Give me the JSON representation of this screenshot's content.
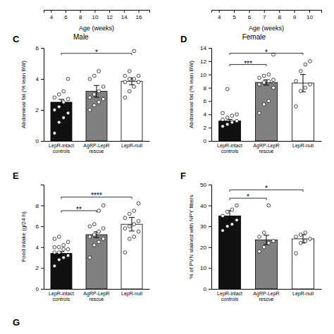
{
  "chart_data": [
    {
      "type": "axis",
      "x_label": "Age (weeks)",
      "xlim": [
        3.0,
        17.5
      ],
      "xticks": [
        4,
        6,
        8,
        10,
        12,
        14,
        16
      ]
    },
    {
      "type": "axis",
      "x_label": "Age (weeks)",
      "xlim": [
        3.5,
        10.8
      ],
      "xticks": [
        4,
        5,
        6,
        7,
        8,
        9,
        10
      ]
    },
    {
      "type": "bar",
      "panel": "C",
      "title": "Male",
      "y_label": "Abdominal fat (% lean BW)",
      "categories": [
        "LepR-intact\ncontrols",
        "AgRP-LepR\nrescue",
        "LepR-null"
      ],
      "values": [
        2.5,
        3.2,
        3.85
      ],
      "errors": [
        0.18,
        0.38,
        0.22
      ],
      "colors": [
        "#111111",
        "#808080",
        "#ffffff"
      ],
      "points": [
        [
          0.5,
          1.2,
          1.5,
          1.8,
          2.0,
          2.2,
          2.5,
          2.7,
          2.8,
          3.0,
          3.2,
          4.0
        ],
        [
          2.0,
          2.3,
          2.5,
          2.7,
          2.8,
          3.0,
          3.2,
          3.5,
          4.0,
          4.2,
          4.5
        ],
        [
          2.8,
          3.2,
          3.5,
          3.8,
          3.8,
          4.0,
          4.0,
          4.2,
          4.2,
          4.5,
          5.8
        ]
      ],
      "ylim": [
        0,
        6
      ],
      "yticks": [
        0,
        2,
        4,
        6
      ],
      "annotations": [
        {
          "text": "*",
          "between": [
            0,
            2
          ],
          "y": 5.65,
          "text_y": 5.7
        }
      ]
    },
    {
      "type": "bar",
      "panel": "D",
      "title": "Female",
      "y_label": "Abdominal fat (% lean BW)",
      "categories": [
        "LepR-intact\ncontrols",
        "AgRP-LepR\nrescue",
        "LepR-null"
      ],
      "values": [
        3.0,
        8.8,
        8.7
      ],
      "errors": [
        0.25,
        0.4,
        1.3
      ],
      "colors": [
        "#111111",
        "#808080",
        "#ffffff"
      ],
      "points": [
        [
          2.2,
          2.5,
          2.8,
          3.0,
          3.2,
          3.5,
          3.8,
          4.0,
          4.2,
          7.8
        ],
        [
          4.2,
          5.5,
          6.0,
          8.0,
          8.5,
          8.8,
          9.0,
          9.2,
          9.5,
          9.8,
          10.0,
          13.0
        ],
        [
          5.2,
          7.5,
          8.0,
          8.5,
          9.0,
          10.5,
          11.5,
          12.0
        ]
      ],
      "ylim": [
        0,
        14
      ],
      "yticks": [
        0,
        2,
        4,
        6,
        8,
        10,
        12,
        14
      ],
      "annotations": [
        {
          "text": "***",
          "between": [
            0,
            1
          ],
          "y": 11.5,
          "text_y": 11.6
        },
        {
          "text": "*",
          "between": [
            0,
            2
          ],
          "y": 13.2,
          "text_y": 13.3
        }
      ]
    },
    {
      "type": "bar",
      "panel": "E",
      "y_label": "Food intake (g/24 h)",
      "categories": [
        "LepR-intact\ncontrols",
        "AgRP-LepR\nrescue",
        "LepR-null"
      ],
      "values": [
        3.4,
        5.2,
        6.2
      ],
      "errors": [
        0.18,
        0.28,
        0.65
      ],
      "colors": [
        "#111111",
        "#808080",
        "#ffffff"
      ],
      "points": [
        [
          2.2,
          2.8,
          3.0,
          3.2,
          3.5,
          3.5,
          3.8,
          3.8,
          4.0,
          4.0,
          4.2,
          4.5,
          4.8,
          5.0
        ],
        [
          3.0,
          4.2,
          4.5,
          4.8,
          5.0,
          5.2,
          5.5,
          5.8,
          6.0,
          6.2,
          7.5,
          8.0
        ],
        [
          3.5,
          4.8,
          5.0,
          5.5,
          5.8,
          6.0,
          6.2,
          6.5,
          6.8,
          7.2,
          7.5,
          8.2
        ]
      ],
      "ylim": [
        0,
        10
      ],
      "yticks": [
        0,
        2,
        4,
        6,
        8
      ],
      "annotations": [
        {
          "text": "**",
          "between": [
            0,
            1
          ],
          "y": 7.5,
          "text_y": 7.6
        },
        {
          "text": "****",
          "between": [
            0,
            2
          ],
          "y": 8.8,
          "text_y": 8.9
        }
      ]
    },
    {
      "type": "bar",
      "panel": "F",
      "y_label": "% of PVN stained with NPY fibers",
      "categories": [
        "LepR-intact\ncontrols",
        "AgRP-LepR\nrescue",
        "LepR-null"
      ],
      "values": [
        35.0,
        23.5,
        24.0
      ],
      "errors": [
        2.5,
        2.2,
        2.0
      ],
      "colors": [
        "#111111",
        "#808080",
        "#ffffff"
      ],
      "points": [
        [
          28.0,
          30.0,
          31.0,
          33.0,
          35.0,
          37.0,
          38.0,
          40.0
        ],
        [
          18.0,
          20.0,
          22.0,
          23.0,
          25.0,
          27.0,
          40.0
        ],
        [
          17.0,
          22.0,
          23.0,
          24.0,
          25.0,
          26.0,
          27.0
        ]
      ],
      "ylim": [
        0,
        50
      ],
      "yticks": [
        0,
        10,
        20,
        30,
        40,
        50
      ],
      "annotations": [
        {
          "text": "*",
          "between": [
            0,
            1
          ],
          "y": 43.5,
          "text_y": 44.0
        },
        {
          "text": "*",
          "between": [
            0,
            2
          ],
          "y": 47.5,
          "text_y": 48.0
        }
      ]
    },
    {
      "type": "label",
      "panel": "G"
    }
  ]
}
